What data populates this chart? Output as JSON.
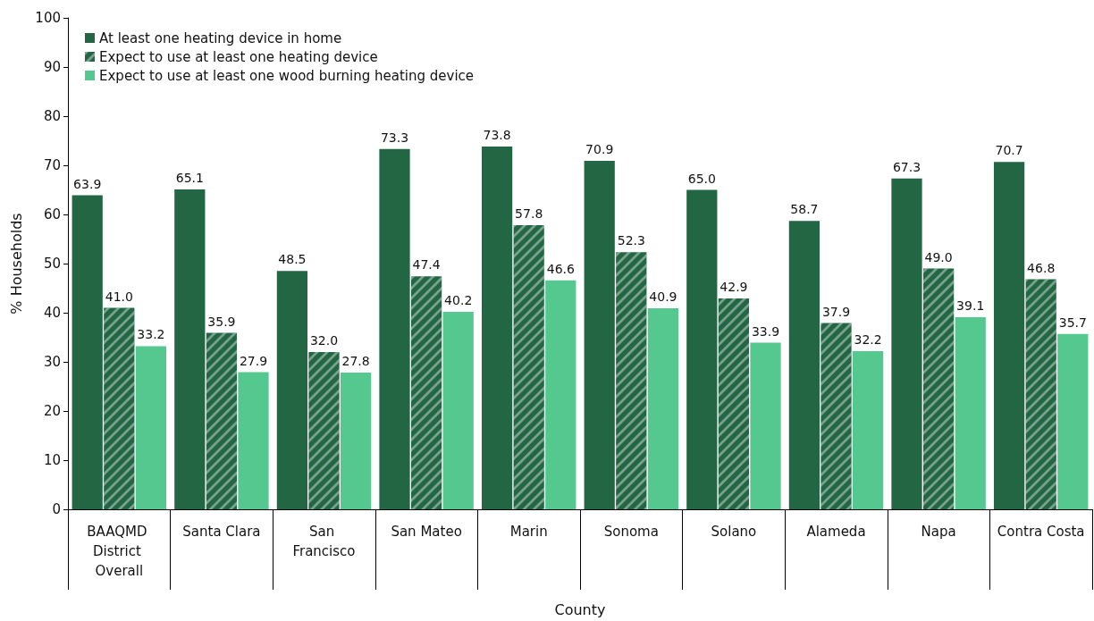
{
  "chart_data": {
    "type": "bar",
    "xlabel": "County",
    "ylabel": "% Households",
    "categories": [
      "BAAQMD District Overall",
      "Santa Clara",
      "San Francisco",
      "San Mateo",
      "Marin",
      "Sonoma",
      "Solano",
      "Alameda",
      "Napa",
      "Contra Costa"
    ],
    "series": [
      {
        "name": "At least one heating device in home",
        "color": "#226644",
        "values": [
          63.9,
          65.1,
          48.5,
          73.3,
          73.8,
          70.9,
          65.0,
          58.7,
          67.3,
          70.7
        ],
        "value_labels": [
          "63.9",
          "65.1",
          "48.5",
          "73.3",
          "73.8",
          "70.9",
          "65.0",
          "58.7",
          "67.3",
          "70.7"
        ]
      },
      {
        "name": "Expect to use at least one heating device",
        "color": "#226644",
        "values": [
          41.0,
          35.9,
          32.0,
          47.4,
          57.8,
          52.3,
          42.9,
          37.9,
          49.0,
          46.8
        ],
        "value_labels": [
          "41.0",
          "35.9",
          "32.0",
          "47.4",
          "57.8",
          "52.3",
          "42.9",
          "37.9",
          "49.0",
          "46.8"
        ]
      },
      {
        "name": "Expect to use at least one wood burning heating device",
        "color": "#55c890",
        "values": [
          33.2,
          27.9,
          27.8,
          40.2,
          46.6,
          40.9,
          33.9,
          32.2,
          39.1,
          35.7
        ],
        "value_labels": [
          "33.2",
          "27.9",
          "27.8",
          "40.2",
          "46.6",
          "40.9",
          "33.9",
          "32.2",
          "39.1",
          "35.7"
        ]
      }
    ],
    "ylim": [
      0,
      100
    ],
    "yticks": [
      0,
      10,
      20,
      30,
      40,
      50,
      60,
      70,
      80,
      90,
      100
    ],
    "grid": false,
    "legend": "top left"
  }
}
